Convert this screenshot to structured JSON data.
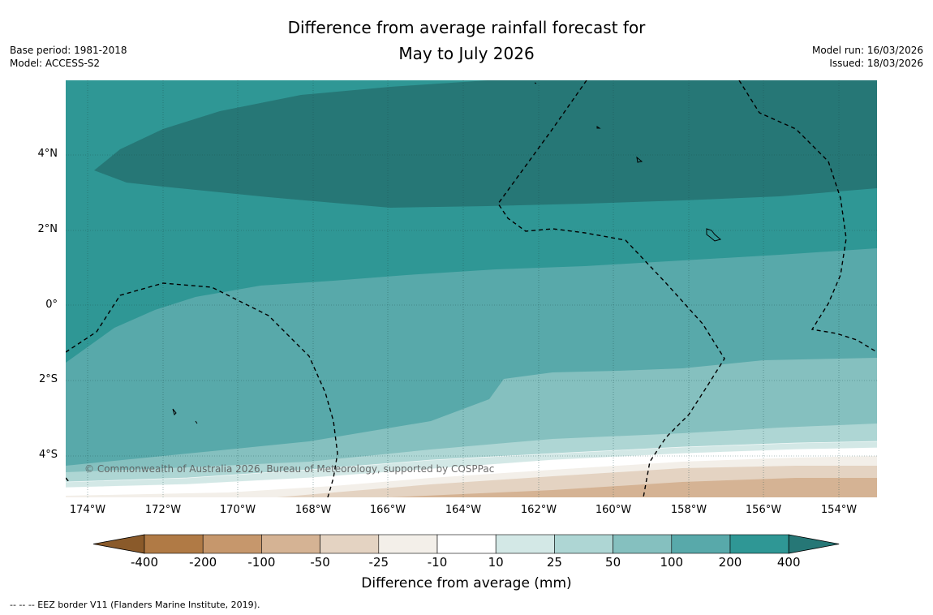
{
  "header": {
    "title_line1": "Difference from average rainfall forecast for",
    "title_line2": "May to July 2026",
    "base_period": "Base period: 1981-2018",
    "model": "Model: ACCESS-S2",
    "model_run": "Model run: 16/03/2026",
    "issued": "Issued: 18/03/2026"
  },
  "map": {
    "lat_labels": [
      "4°N",
      "2°N",
      "0°",
      "2°S",
      "4°S"
    ],
    "lon_labels": [
      "174°W",
      "172°W",
      "170°W",
      "168°W",
      "166°W",
      "164°W",
      "162°W",
      "160°W",
      "158°W",
      "156°W",
      "154°W"
    ],
    "copyright": "© Commonwealth of Australia 2026, Bureau of Meteorology, supported by COSPPac"
  },
  "colorbar": {
    "ticks": [
      "-400",
      "-200",
      "-100",
      "-50",
      "-25",
      "-10",
      "10",
      "25",
      "50",
      "100",
      "200",
      "400"
    ],
    "colors": [
      "#8a5a2a",
      "#b07a45",
      "#c6976c",
      "#d5b394",
      "#e4d3c2",
      "#f3efe9",
      "#ffffff",
      "#d3e8e6",
      "#aed6d4",
      "#85c0bf",
      "#58a9aa",
      "#2f9795",
      "#267776"
    ],
    "title": "Difference from average (mm)"
  },
  "footnote": "--  --  -- EEZ border V11 (Flanders Marine Institute, 2019)."
}
